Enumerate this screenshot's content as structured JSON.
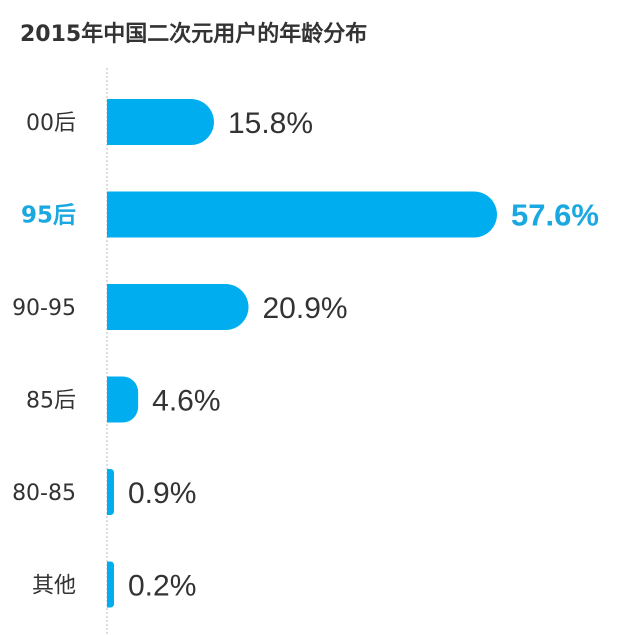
{
  "title": "2015年中国二次元用户的年龄分布",
  "colors": {
    "bar": "#00AEEF",
    "highlight_text": "#1BA8E0",
    "text": "#333333",
    "axis": "#BBBBBB"
  },
  "chart_data": {
    "type": "bar",
    "orientation": "horizontal",
    "title": "2015年中国二次元用户的年龄分布",
    "categories": [
      "00后",
      "95后",
      "90-95",
      "85后",
      "80-85",
      "其他"
    ],
    "values": [
      15.8,
      57.6,
      20.9,
      4.6,
      0.9,
      0.2
    ],
    "value_labels": [
      "15.8%",
      "57.6%",
      "20.9%",
      "4.6%",
      "0.9%",
      "0.2%"
    ],
    "highlight_category": "95后",
    "xlim": [
      0,
      57.6
    ],
    "grid": false,
    "legend": "none"
  }
}
